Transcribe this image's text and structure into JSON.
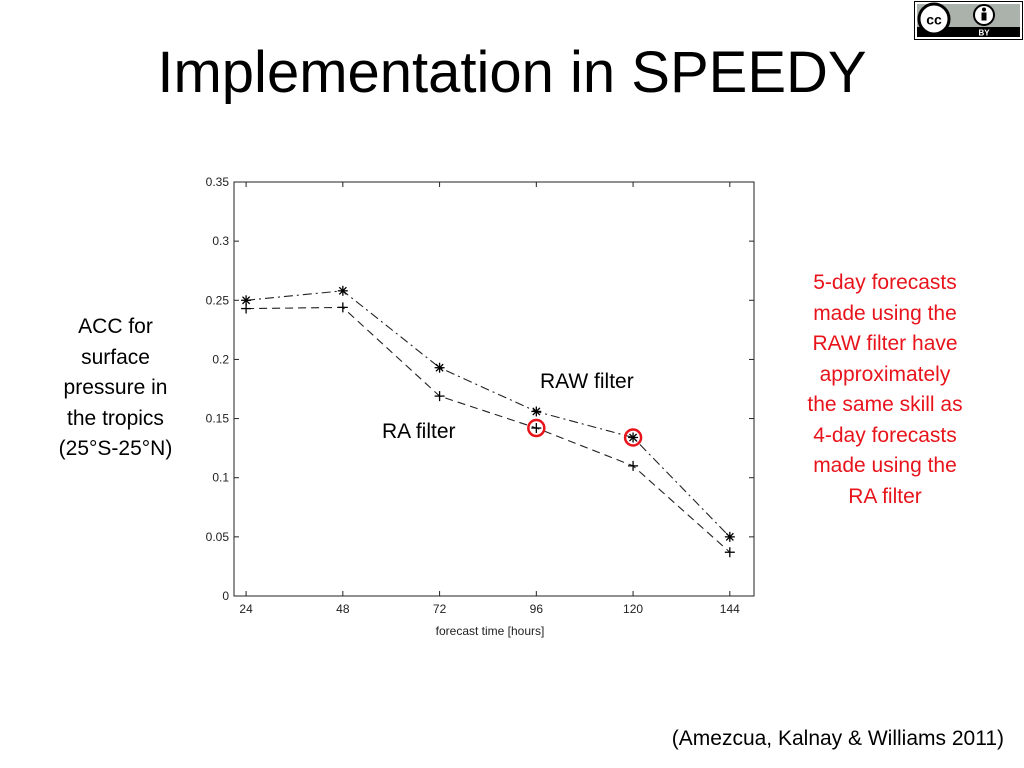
{
  "slide": {
    "title": "Implementation in SPEEDY",
    "side_label_lines": [
      "ACC for",
      "surface",
      "pressure in",
      "the tropics",
      "(25°S-25°N)"
    ],
    "note_lines": [
      "5-day forecasts",
      "made using the",
      "RAW filter have",
      "approximately",
      "the same skill as",
      "4-day forecasts",
      "made using the",
      "RA filter"
    ],
    "citation": "(Amezcua, Kalnay & Williams 2011)",
    "badge": {
      "icons": [
        "cc-icon",
        "attribution-icon"
      ],
      "text": "BY"
    }
  },
  "colors": {
    "note": "#e8141b",
    "highlight": "#e8141b",
    "series": "#222222"
  },
  "chart_data": {
    "type": "line",
    "title": "",
    "xlabel": "forecast time [hours]",
    "ylabel": "",
    "x": [
      24,
      48,
      72,
      96,
      120,
      144
    ],
    "xlim": [
      21,
      150
    ],
    "ylim": [
      0,
      0.35
    ],
    "xticks": [
      "24",
      "48",
      "72",
      "96",
      "120",
      "144"
    ],
    "yticks": [
      "0",
      "0.05",
      "0.1",
      "0.15",
      "0.2",
      "0.25",
      "0.3",
      "0.35"
    ],
    "grid": false,
    "series": [
      {
        "name": "RAW filter",
        "marker": "asterisk",
        "dash": "dash-dot",
        "values": [
          0.25,
          0.258,
          0.193,
          0.156,
          0.134,
          0.05
        ]
      },
      {
        "name": "RA filter",
        "marker": "plus",
        "dash": "dashed",
        "values": [
          0.243,
          0.244,
          0.169,
          0.142,
          0.11,
          0.037
        ]
      }
    ],
    "highlights": [
      {
        "x": 96,
        "y": 0.142
      },
      {
        "x": 120,
        "y": 0.134
      }
    ]
  }
}
